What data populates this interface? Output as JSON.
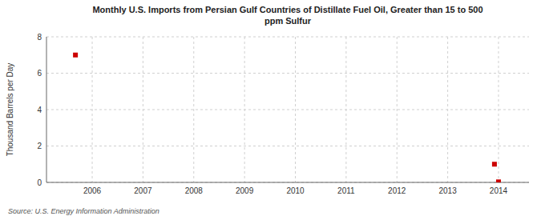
{
  "chart_data": {
    "type": "scatter",
    "title": "Monthly U.S. Imports from Persian Gulf Countries of Distillate Fuel Oil, Greater than 15 to 500\nppm Sulfur",
    "ylabel": "Thousand Barrels per Day",
    "source": "Source: U.S. Energy Information Administration",
    "x": [
      2005.67,
      2013.92,
      2014.0
    ],
    "values": [
      7.0,
      1.0,
      0.03
    ],
    "color": "#CC0000",
    "marker": "square",
    "xlim": [
      2005.1,
      2014.6
    ],
    "ylim": [
      0,
      8
    ],
    "xticks": [
      2006,
      2007,
      2008,
      2009,
      2010,
      2011,
      2012,
      2013,
      2014
    ],
    "yticks": [
      0,
      2,
      4,
      6,
      8
    ],
    "grid": true
  }
}
